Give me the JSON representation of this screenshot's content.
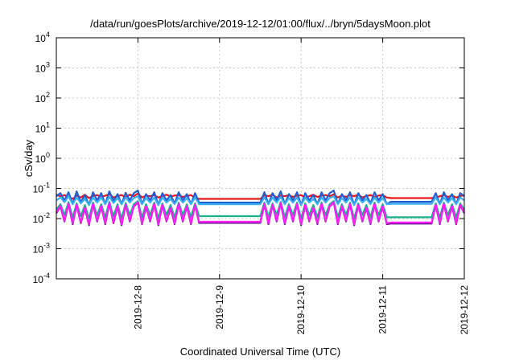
{
  "chart_data": {
    "type": "line",
    "title": "/data/run/goesPlots/archive/2019-12-12/01:00/flux/../bryn/5daysMoon.plot",
    "xlabel": "Coordinated Universal Time (UTC)",
    "ylabel": "cSv/day",
    "y_scale": "log",
    "ylim": [
      0.0001,
      10000
    ],
    "xlim": [
      "2019-12-07 01:00",
      "2019-12-12 01:00"
    ],
    "x_ticks": [
      "2019-12-8",
      "2019-12-9",
      "2019-12-10",
      "2019-12-11",
      "2019-12-12"
    ],
    "y_ticks": [
      {
        "base": "10",
        "exp": "-4"
      },
      {
        "base": "10",
        "exp": "-3"
      },
      {
        "base": "10",
        "exp": "-2"
      },
      {
        "base": "10",
        "exp": "-1"
      },
      {
        "base": "10",
        "exp": "0"
      },
      {
        "base": "10",
        "exp": "1"
      },
      {
        "base": "10",
        "exp": "2"
      },
      {
        "base": "10",
        "exp": "3"
      },
      {
        "base": "10",
        "exp": "4"
      }
    ],
    "grid": true,
    "legend": "none",
    "x_days": [
      0,
      0.05,
      0.1,
      0.15,
      0.2,
      0.25,
      0.3,
      0.35,
      0.4,
      0.45,
      0.5,
      0.55,
      0.6,
      0.65,
      0.7,
      0.75,
      0.8,
      0.85,
      0.9,
      0.95,
      1.0,
      1.05,
      1.1,
      1.15,
      1.2,
      1.25,
      1.3,
      1.35,
      1.4,
      1.45,
      1.5,
      1.55,
      1.6,
      1.65,
      1.7,
      1.75,
      1.8,
      1.85,
      1.9,
      1.95,
      2.0,
      2.05,
      2.1,
      2.15,
      2.2,
      2.25,
      2.3,
      2.35,
      2.4,
      2.45,
      2.5,
      2.55,
      2.6,
      2.65,
      2.7,
      2.75,
      2.8,
      2.85,
      2.9,
      2.95,
      3.0,
      3.05,
      3.1,
      3.15,
      3.2,
      3.25,
      3.3,
      3.35,
      3.4,
      3.45,
      3.5,
      3.55,
      3.6,
      3.65,
      3.7,
      3.75,
      3.8,
      3.85,
      3.9,
      3.95,
      4.0,
      4.05,
      4.1,
      4.15,
      4.2,
      4.25,
      4.3,
      4.35,
      4.4,
      4.45,
      4.5,
      4.55,
      4.6,
      4.65,
      4.7,
      4.75,
      4.8,
      4.85,
      4.9,
      4.95,
      5.0
    ],
    "series": [
      {
        "color": "#e8161a",
        "values": [
          0.062,
          0.055,
          0.06,
          0.052,
          0.045,
          0.058,
          0.05,
          0.062,
          0.048,
          0.056,
          0.06,
          0.052,
          0.058,
          0.064,
          0.05,
          0.056,
          0.06,
          0.052,
          0.062,
          0.055,
          0.068,
          0.05,
          0.058,
          0.055,
          0.06,
          0.05,
          0.056,
          0.062,
          0.054,
          0.058,
          0.06,
          0.052,
          0.056,
          0.06,
          0.05,
          0.045,
          0.045,
          0.045,
          0.045,
          0.045,
          0.045,
          0.045,
          0.045,
          0.045,
          0.045,
          0.045,
          0.045,
          0.045,
          0.045,
          0.045,
          0.045,
          0.06,
          0.055,
          0.062,
          0.05,
          0.058,
          0.055,
          0.06,
          0.052,
          0.058,
          0.06,
          0.05,
          0.055,
          0.062,
          0.052,
          0.058,
          0.06,
          0.055,
          0.064,
          0.05,
          0.058,
          0.052,
          0.06,
          0.055,
          0.062,
          0.05,
          0.056,
          0.06,
          0.052,
          0.058,
          0.06,
          0.05,
          0.048,
          0.048,
          0.048,
          0.048,
          0.048,
          0.048,
          0.048,
          0.048,
          0.048,
          0.048,
          0.048,
          0.05,
          0.055,
          0.06,
          0.052,
          0.058,
          0.05,
          0.056,
          0.06
        ]
      },
      {
        "color": "#1f5fd6",
        "values": [
          0.055,
          0.07,
          0.04,
          0.075,
          0.03,
          0.08,
          0.035,
          0.06,
          0.028,
          0.075,
          0.04,
          0.07,
          0.03,
          0.08,
          0.038,
          0.065,
          0.03,
          0.072,
          0.04,
          0.07,
          0.085,
          0.03,
          0.065,
          0.04,
          0.075,
          0.028,
          0.07,
          0.04,
          0.06,
          0.032,
          0.075,
          0.04,
          0.065,
          0.03,
          0.07,
          0.034,
          0.034,
          0.034,
          0.034,
          0.034,
          0.034,
          0.034,
          0.034,
          0.034,
          0.034,
          0.034,
          0.034,
          0.034,
          0.034,
          0.034,
          0.034,
          0.075,
          0.03,
          0.07,
          0.04,
          0.08,
          0.03,
          0.065,
          0.04,
          0.075,
          0.028,
          0.07,
          0.04,
          0.06,
          0.03,
          0.075,
          0.04,
          0.07,
          0.085,
          0.03,
          0.065,
          0.04,
          0.075,
          0.028,
          0.07,
          0.04,
          0.06,
          0.032,
          0.075,
          0.04,
          0.065,
          0.03,
          0.036,
          0.036,
          0.036,
          0.036,
          0.036,
          0.036,
          0.036,
          0.036,
          0.036,
          0.036,
          0.036,
          0.07,
          0.03,
          0.075,
          0.04,
          0.065,
          0.03,
          0.07,
          0.055
        ]
      },
      {
        "color": "#3ab0f0",
        "values": [
          0.04,
          0.05,
          0.035,
          0.055,
          0.03,
          0.05,
          0.032,
          0.045,
          0.028,
          0.05,
          0.034,
          0.05,
          0.03,
          0.052,
          0.033,
          0.048,
          0.03,
          0.05,
          0.034,
          0.048,
          0.055,
          0.03,
          0.048,
          0.034,
          0.05,
          0.028,
          0.05,
          0.034,
          0.045,
          0.03,
          0.05,
          0.034,
          0.048,
          0.03,
          0.05,
          0.03,
          0.03,
          0.03,
          0.03,
          0.03,
          0.03,
          0.03,
          0.03,
          0.03,
          0.03,
          0.03,
          0.03,
          0.03,
          0.03,
          0.03,
          0.03,
          0.05,
          0.03,
          0.05,
          0.034,
          0.052,
          0.03,
          0.048,
          0.034,
          0.05,
          0.028,
          0.05,
          0.034,
          0.045,
          0.03,
          0.05,
          0.034,
          0.048,
          0.055,
          0.03,
          0.048,
          0.034,
          0.05,
          0.028,
          0.05,
          0.034,
          0.045,
          0.03,
          0.05,
          0.034,
          0.048,
          0.03,
          0.031,
          0.031,
          0.031,
          0.031,
          0.031,
          0.031,
          0.031,
          0.031,
          0.031,
          0.031,
          0.031,
          0.05,
          0.03,
          0.05,
          0.034,
          0.048,
          0.03,
          0.05,
          0.04
        ]
      },
      {
        "color": "#17b48c",
        "values": [
          0.02,
          0.03,
          0.013,
          0.035,
          0.011,
          0.032,
          0.012,
          0.028,
          0.01,
          0.034,
          0.013,
          0.03,
          0.011,
          0.036,
          0.012,
          0.03,
          0.01,
          0.033,
          0.013,
          0.03,
          0.038,
          0.011,
          0.03,
          0.013,
          0.034,
          0.01,
          0.032,
          0.013,
          0.028,
          0.011,
          0.034,
          0.013,
          0.03,
          0.011,
          0.032,
          0.012,
          0.012,
          0.012,
          0.012,
          0.012,
          0.012,
          0.012,
          0.012,
          0.012,
          0.012,
          0.012,
          0.012,
          0.012,
          0.012,
          0.012,
          0.012,
          0.034,
          0.011,
          0.032,
          0.013,
          0.036,
          0.011,
          0.03,
          0.013,
          0.034,
          0.01,
          0.032,
          0.013,
          0.028,
          0.011,
          0.034,
          0.013,
          0.03,
          0.038,
          0.011,
          0.03,
          0.013,
          0.034,
          0.01,
          0.032,
          0.013,
          0.028,
          0.011,
          0.034,
          0.013,
          0.03,
          0.011,
          0.011,
          0.011,
          0.011,
          0.011,
          0.011,
          0.011,
          0.011,
          0.011,
          0.011,
          0.011,
          0.011,
          0.032,
          0.011,
          0.034,
          0.013,
          0.03,
          0.011,
          0.032,
          0.02
        ]
      },
      {
        "color": "#6a1a8a",
        "values": [
          0.015,
          0.025,
          0.008,
          0.03,
          0.0065,
          0.028,
          0.007,
          0.022,
          0.006,
          0.03,
          0.008,
          0.025,
          0.0065,
          0.032,
          0.007,
          0.025,
          0.006,
          0.028,
          0.008,
          0.025,
          0.034,
          0.0065,
          0.025,
          0.008,
          0.03,
          0.006,
          0.028,
          0.008,
          0.022,
          0.0065,
          0.03,
          0.008,
          0.025,
          0.0065,
          0.028,
          0.0072,
          0.0072,
          0.0072,
          0.0072,
          0.0072,
          0.0072,
          0.0072,
          0.0072,
          0.0072,
          0.0072,
          0.0072,
          0.0072,
          0.0072,
          0.0072,
          0.0072,
          0.0072,
          0.03,
          0.0065,
          0.028,
          0.008,
          0.032,
          0.0065,
          0.025,
          0.008,
          0.03,
          0.006,
          0.028,
          0.008,
          0.022,
          0.0065,
          0.03,
          0.008,
          0.025,
          0.034,
          0.0065,
          0.025,
          0.008,
          0.03,
          0.006,
          0.028,
          0.008,
          0.022,
          0.0065,
          0.03,
          0.008,
          0.025,
          0.0065,
          0.0068,
          0.0068,
          0.0068,
          0.0068,
          0.0068,
          0.0068,
          0.0068,
          0.0068,
          0.0068,
          0.0068,
          0.0068,
          0.028,
          0.0065,
          0.03,
          0.008,
          0.025,
          0.0065,
          0.028,
          0.015
        ]
      },
      {
        "color": "#ff1aff",
        "values": [
          0.016,
          0.026,
          0.0085,
          0.031,
          0.007,
          0.029,
          0.0075,
          0.023,
          0.0065,
          0.031,
          0.0085,
          0.026,
          0.007,
          0.033,
          0.0075,
          0.026,
          0.0065,
          0.029,
          0.0085,
          0.026,
          0.035,
          0.007,
          0.026,
          0.0085,
          0.031,
          0.0065,
          0.029,
          0.0085,
          0.023,
          0.007,
          0.031,
          0.0085,
          0.026,
          0.007,
          0.029,
          0.0078,
          0.0078,
          0.0078,
          0.0078,
          0.0078,
          0.0078,
          0.0078,
          0.0078,
          0.0078,
          0.0078,
          0.0078,
          0.0078,
          0.0078,
          0.0078,
          0.0078,
          0.0078,
          0.031,
          0.007,
          0.029,
          0.0085,
          0.033,
          0.007,
          0.026,
          0.0085,
          0.031,
          0.0065,
          0.029,
          0.0085,
          0.023,
          0.007,
          0.031,
          0.0085,
          0.026,
          0.035,
          0.007,
          0.026,
          0.0085,
          0.031,
          0.0065,
          0.029,
          0.0085,
          0.023,
          0.007,
          0.031,
          0.0085,
          0.026,
          0.007,
          0.0074,
          0.0074,
          0.0074,
          0.0074,
          0.0074,
          0.0074,
          0.0074,
          0.0074,
          0.0074,
          0.0074,
          0.0074,
          0.029,
          0.007,
          0.031,
          0.0085,
          0.026,
          0.007,
          0.029,
          0.016
        ]
      }
    ]
  }
}
